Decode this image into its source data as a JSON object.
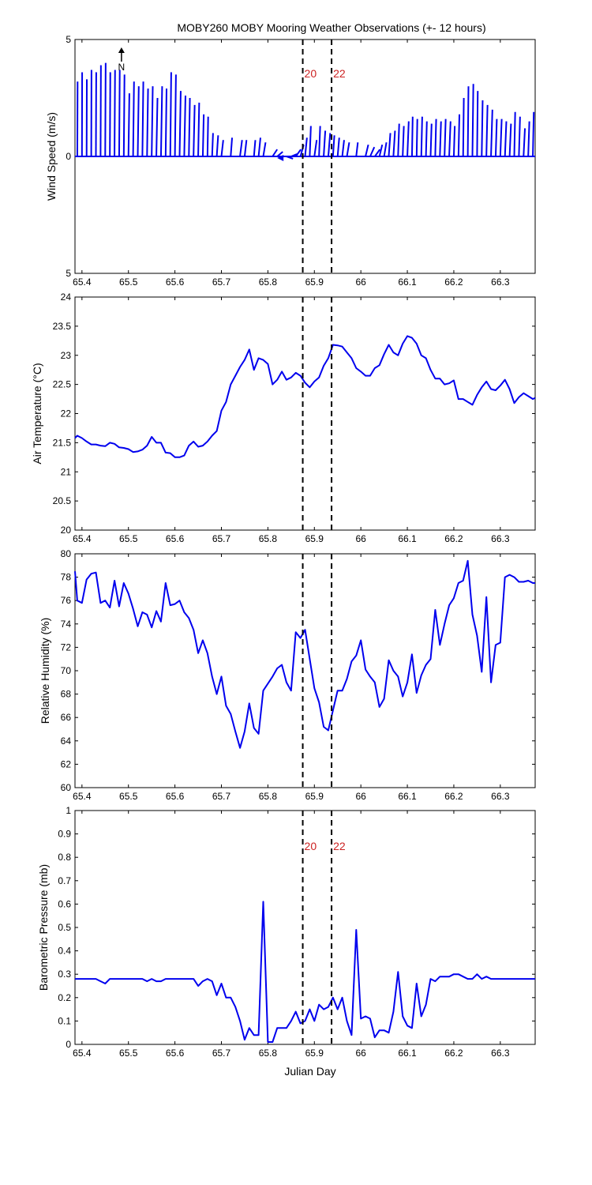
{
  "figure": {
    "title": "MOBY260 MOBY Mooring Weather Observations (+- 12 hours)",
    "xlabel": "Julian Day",
    "line_color": "#0000ee",
    "marker_color": "#cc2222",
    "x_ticks": [
      "65.4",
      "65.5",
      "65.6",
      "65.7",
      "65.8",
      "65.9",
      "66",
      "66.1",
      "66.2",
      "66.3"
    ]
  },
  "chart_data": [
    {
      "type": "line",
      "subtype": "wind-stick",
      "ylabel": "Wind Speed (m/s)",
      "xlim": [
        65.385,
        66.375
      ],
      "ylim": [
        -5,
        5
      ],
      "y_ticks": [
        "5",
        "0",
        "5"
      ],
      "north_label": "N",
      "vline_labels": [
        "20",
        "22"
      ],
      "vlines": [
        65.875,
        65.937
      ],
      "sticks": [
        [
          65.39,
          3.2,
          0.06
        ],
        [
          65.4,
          3.6,
          0.04
        ],
        [
          65.41,
          3.3,
          0.05
        ],
        [
          65.42,
          3.7,
          0.05
        ],
        [
          65.43,
          3.6,
          0.07
        ],
        [
          65.44,
          3.9,
          0.08
        ],
        [
          65.45,
          4.0,
          0.1
        ],
        [
          65.46,
          3.6,
          0.1
        ],
        [
          65.47,
          3.7,
          0.12
        ],
        [
          65.48,
          3.7,
          0.13
        ],
        [
          65.49,
          3.5,
          0.15
        ],
        [
          65.5,
          2.7,
          0.2
        ],
        [
          65.51,
          3.2,
          0.2
        ],
        [
          65.52,
          3.0,
          0.22
        ],
        [
          65.53,
          3.2,
          0.2
        ],
        [
          65.54,
          2.9,
          0.22
        ],
        [
          65.55,
          3.0,
          0.23
        ],
        [
          65.56,
          2.5,
          0.25
        ],
        [
          65.57,
          3.0,
          0.25
        ],
        [
          65.58,
          2.9,
          0.2
        ],
        [
          65.59,
          3.6,
          0.2
        ],
        [
          65.6,
          3.5,
          0.22
        ],
        [
          65.61,
          2.8,
          0.25
        ],
        [
          65.62,
          2.6,
          0.27
        ],
        [
          65.63,
          2.5,
          0.22
        ],
        [
          65.64,
          2.2,
          0.25
        ],
        [
          65.65,
          2.3,
          0.22
        ],
        [
          65.66,
          1.8,
          0.2
        ],
        [
          65.67,
          1.7,
          0.15
        ],
        [
          65.68,
          1.0,
          0.2
        ],
        [
          65.69,
          0.9,
          0.3
        ],
        [
          65.7,
          0.7,
          0.4
        ],
        [
          65.72,
          0.8,
          0.3
        ],
        [
          65.74,
          0.7,
          0.45
        ],
        [
          65.75,
          0.7,
          0.4
        ],
        [
          65.77,
          0.7,
          0.3
        ],
        [
          65.78,
          0.8,
          0.4
        ],
        [
          65.79,
          0.6,
          0.5
        ],
        [
          65.81,
          0.3,
          1.0
        ],
        [
          65.82,
          0.2,
          1.2
        ],
        [
          65.84,
          -0.1,
          1.4
        ],
        [
          65.85,
          0.1,
          1.25
        ],
        [
          65.86,
          0.3,
          1.1
        ],
        [
          65.87,
          0.5,
          0.7
        ],
        [
          65.88,
          0.8,
          0.4
        ],
        [
          65.89,
          1.3,
          0.25
        ],
        [
          65.9,
          0.7,
          0.5
        ],
        [
          65.91,
          1.3,
          0.25
        ],
        [
          65.92,
          1.1,
          0.35
        ],
        [
          65.93,
          1.0,
          0.4
        ],
        [
          65.94,
          0.9,
          0.3
        ],
        [
          65.95,
          0.8,
          0.35
        ],
        [
          65.96,
          0.7,
          0.4
        ],
        [
          65.97,
          0.6,
          0.5
        ],
        [
          65.99,
          0.6,
          0.35
        ],
        [
          66.01,
          0.5,
          0.6
        ],
        [
          66.02,
          0.4,
          0.9
        ],
        [
          66.03,
          0.3,
          1.1
        ],
        [
          66.04,
          0.5,
          0.6
        ],
        [
          66.05,
          0.6,
          0.5
        ],
        [
          66.06,
          1.0,
          0.35
        ],
        [
          66.07,
          1.1,
          0.35
        ],
        [
          66.08,
          1.4,
          0.25
        ],
        [
          66.09,
          1.3,
          0.25
        ],
        [
          66.1,
          1.5,
          0.3
        ],
        [
          66.11,
          1.7,
          0.15
        ],
        [
          66.12,
          1.6,
          0.15
        ],
        [
          66.13,
          1.7,
          0.2
        ],
        [
          66.14,
          1.5,
          0.2
        ],
        [
          66.15,
          1.4,
          0.22
        ],
        [
          66.16,
          1.6,
          0.2
        ],
        [
          66.17,
          1.5,
          0.25
        ],
        [
          66.18,
          1.6,
          0.25
        ],
        [
          66.19,
          1.5,
          0.3
        ],
        [
          66.2,
          1.3,
          0.2
        ],
        [
          66.21,
          1.8,
          0.2
        ],
        [
          66.22,
          2.5,
          0.15
        ],
        [
          66.23,
          3.0,
          0.15
        ],
        [
          66.24,
          3.1,
          0.2
        ],
        [
          66.25,
          2.8,
          0.15
        ],
        [
          66.26,
          2.4,
          0.2
        ],
        [
          66.27,
          2.2,
          0.25
        ],
        [
          66.28,
          2.0,
          0.3
        ],
        [
          66.29,
          1.6,
          0.25
        ],
        [
          66.3,
          1.6,
          0.3
        ],
        [
          66.31,
          1.5,
          0.3
        ],
        [
          66.32,
          1.4,
          0.3
        ],
        [
          66.33,
          1.9,
          0.2
        ],
        [
          66.34,
          1.7,
          0.25
        ],
        [
          66.35,
          1.2,
          0.3
        ],
        [
          66.36,
          1.5,
          0.25
        ],
        [
          66.37,
          1.9,
          0.2
        ]
      ]
    },
    {
      "type": "line",
      "ylabel": "Air Temperature (°C)",
      "xlim": [
        65.385,
        66.375
      ],
      "ylim": [
        20,
        24
      ],
      "y_ticks": [
        "20",
        "20.5",
        "21",
        "21.5",
        "22",
        "22.5",
        "23",
        "23.5",
        "24"
      ],
      "vlines": [
        65.875,
        65.937
      ],
      "x": [
        65.385,
        65.39,
        65.4,
        65.41,
        65.42,
        65.43,
        65.44,
        65.45,
        65.46,
        65.47,
        65.48,
        65.49,
        65.5,
        65.51,
        65.52,
        65.53,
        65.54,
        65.55,
        65.56,
        65.57,
        65.58,
        65.59,
        65.6,
        65.61,
        65.62,
        65.63,
        65.64,
        65.65,
        65.66,
        65.67,
        65.68,
        65.69,
        65.7,
        65.71,
        65.72,
        65.73,
        65.74,
        65.75,
        65.76,
        65.77,
        65.78,
        65.79,
        65.8,
        65.81,
        65.82,
        65.83,
        65.84,
        65.85,
        65.86,
        65.87,
        65.88,
        65.89,
        65.9,
        65.91,
        65.92,
        65.93,
        65.94,
        65.95,
        65.96,
        65.97,
        65.98,
        65.99,
        66.0,
        66.01,
        66.02,
        66.03,
        66.04,
        66.05,
        66.06,
        66.07,
        66.08,
        66.09,
        66.1,
        66.11,
        66.12,
        66.13,
        66.14,
        66.15,
        66.16,
        66.17,
        66.18,
        66.19,
        66.2,
        66.21,
        66.22,
        66.23,
        66.24,
        66.25,
        66.26,
        66.27,
        66.28,
        66.29,
        66.3,
        66.31,
        66.32,
        66.33,
        66.34,
        66.35,
        66.36,
        66.37,
        66.375
      ],
      "y": [
        21.58,
        21.62,
        21.58,
        21.52,
        21.47,
        21.47,
        21.45,
        21.44,
        21.5,
        21.48,
        21.42,
        21.41,
        21.39,
        21.34,
        21.35,
        21.38,
        21.45,
        21.6,
        21.5,
        21.5,
        21.33,
        21.32,
        21.25,
        21.25,
        21.28,
        21.45,
        21.52,
        21.43,
        21.45,
        21.52,
        21.62,
        21.7,
        22.05,
        22.2,
        22.5,
        22.65,
        22.8,
        22.92,
        23.1,
        22.75,
        22.95,
        22.92,
        22.85,
        22.5,
        22.58,
        22.72,
        22.58,
        22.62,
        22.7,
        22.65,
        22.53,
        22.45,
        22.55,
        22.62,
        22.82,
        22.95,
        23.18,
        23.17,
        23.15,
        23.05,
        22.95,
        22.78,
        22.72,
        22.65,
        22.65,
        22.78,
        22.83,
        23.02,
        23.18,
        23.05,
        23.0,
        23.2,
        23.33,
        23.3,
        23.2,
        23.0,
        22.95,
        22.75,
        22.6,
        22.6,
        22.5,
        22.52,
        22.57,
        22.25,
        22.25,
        22.2,
        22.15,
        22.32,
        22.45,
        22.55,
        22.42,
        22.4,
        22.48,
        22.58,
        22.42,
        22.18,
        22.28,
        22.35,
        22.3,
        22.25,
        22.27
      ]
    },
    {
      "type": "line",
      "ylabel": "Relative Humidity (%)",
      "xlim": [
        65.385,
        66.375
      ],
      "ylim": [
        60,
        80
      ],
      "y_ticks": [
        "60",
        "62",
        "64",
        "66",
        "68",
        "70",
        "72",
        "74",
        "76",
        "78",
        "80"
      ],
      "vlines": [
        65.875,
        65.937
      ],
      "x": [
        65.385,
        65.39,
        65.4,
        65.41,
        65.42,
        65.43,
        65.44,
        65.45,
        65.46,
        65.47,
        65.48,
        65.49,
        65.5,
        65.51,
        65.52,
        65.53,
        65.54,
        65.55,
        65.56,
        65.57,
        65.58,
        65.59,
        65.6,
        65.61,
        65.62,
        65.63,
        65.64,
        65.65,
        65.66,
        65.67,
        65.68,
        65.69,
        65.7,
        65.71,
        65.72,
        65.73,
        65.74,
        65.75,
        65.76,
        65.77,
        65.78,
        65.79,
        65.8,
        65.81,
        65.82,
        65.83,
        65.84,
        65.85,
        65.86,
        65.87,
        65.88,
        65.89,
        65.9,
        65.91,
        65.92,
        65.93,
        65.94,
        65.95,
        65.96,
        65.97,
        65.98,
        65.99,
        66.0,
        66.01,
        66.02,
        66.03,
        66.04,
        66.05,
        66.06,
        66.07,
        66.08,
        66.09,
        66.1,
        66.11,
        66.12,
        66.13,
        66.14,
        66.15,
        66.16,
        66.17,
        66.18,
        66.19,
        66.2,
        66.21,
        66.22,
        66.23,
        66.24,
        66.25,
        66.26,
        66.27,
        66.28,
        66.29,
        66.3,
        66.31,
        66.32,
        66.33,
        66.34,
        66.35,
        66.36,
        66.37,
        66.375
      ],
      "y": [
        78.5,
        76.0,
        75.8,
        77.8,
        78.3,
        78.4,
        75.8,
        76.0,
        75.4,
        77.7,
        75.5,
        77.5,
        76.6,
        75.3,
        73.8,
        75.0,
        74.8,
        73.7,
        75.1,
        74.2,
        77.5,
        75.6,
        75.7,
        76.0,
        75.0,
        74.5,
        73.5,
        71.5,
        72.6,
        71.5,
        69.5,
        68.0,
        69.5,
        67.0,
        66.3,
        64.8,
        63.4,
        64.8,
        67.2,
        65.1,
        64.6,
        68.3,
        68.9,
        69.5,
        70.2,
        70.5,
        69.0,
        68.3,
        73.3,
        72.8,
        73.5,
        71.0,
        68.5,
        67.3,
        65.2,
        64.9,
        66.6,
        68.3,
        68.3,
        69.3,
        70.8,
        71.3,
        72.6,
        70.1,
        69.5,
        69.0,
        66.9,
        67.6,
        70.9,
        70.0,
        69.5,
        67.8,
        69.0,
        71.4,
        68.1,
        69.6,
        70.5,
        71.0,
        75.2,
        72.2,
        74.0,
        75.6,
        76.2,
        77.5,
        77.7,
        79.4,
        74.8,
        73.0,
        69.9,
        76.3,
        69.0,
        72.2,
        72.4,
        78.0,
        78.2,
        78.0,
        77.6,
        77.6,
        77.7,
        77.5,
        77.5
      ]
    },
    {
      "type": "line",
      "ylabel": "Barometric Pressure (mb)",
      "xlim": [
        65.385,
        66.375
      ],
      "ylim": [
        0,
        1
      ],
      "y_ticks": [
        "0",
        "0.1",
        "0.2",
        "0.3",
        "0.4",
        "0.5",
        "0.6",
        "0.7",
        "0.8",
        "0.9",
        "1"
      ],
      "vline_labels": [
        "20",
        "22"
      ],
      "vlines": [
        65.875,
        65.937
      ],
      "x": [
        65.385,
        65.39,
        65.4,
        65.41,
        65.42,
        65.43,
        65.44,
        65.45,
        65.46,
        65.47,
        65.48,
        65.49,
        65.5,
        65.51,
        65.52,
        65.53,
        65.54,
        65.55,
        65.56,
        65.57,
        65.58,
        65.59,
        65.6,
        65.61,
        65.62,
        65.63,
        65.64,
        65.65,
        65.66,
        65.67,
        65.68,
        65.69,
        65.7,
        65.71,
        65.72,
        65.73,
        65.74,
        65.75,
        65.76,
        65.77,
        65.78,
        65.79,
        65.8,
        65.81,
        65.82,
        65.83,
        65.84,
        65.85,
        65.86,
        65.87,
        65.88,
        65.89,
        65.9,
        65.91,
        65.92,
        65.93,
        65.94,
        65.95,
        65.96,
        65.97,
        65.98,
        65.99,
        66.0,
        66.01,
        66.02,
        66.03,
        66.04,
        66.05,
        66.06,
        66.07,
        66.08,
        66.09,
        66.1,
        66.11,
        66.12,
        66.13,
        66.14,
        66.15,
        66.16,
        66.17,
        66.18,
        66.19,
        66.2,
        66.21,
        66.22,
        66.23,
        66.24,
        66.25,
        66.26,
        66.27,
        66.28,
        66.29,
        66.3,
        66.31,
        66.32,
        66.33,
        66.34,
        66.35,
        66.36,
        66.37,
        66.375
      ],
      "y": [
        0.28,
        0.28,
        0.28,
        0.28,
        0.28,
        0.28,
        0.27,
        0.26,
        0.28,
        0.28,
        0.28,
        0.28,
        0.28,
        0.28,
        0.28,
        0.28,
        0.27,
        0.28,
        0.27,
        0.27,
        0.28,
        0.28,
        0.28,
        0.28,
        0.28,
        0.28,
        0.28,
        0.25,
        0.27,
        0.28,
        0.27,
        0.21,
        0.26,
        0.2,
        0.2,
        0.16,
        0.1,
        0.02,
        0.07,
        0.04,
        0.04,
        0.61,
        0.01,
        0.01,
        0.07,
        0.07,
        0.07,
        0.1,
        0.14,
        0.09,
        0.1,
        0.15,
        0.1,
        0.17,
        0.15,
        0.16,
        0.2,
        0.15,
        0.2,
        0.1,
        0.04,
        0.49,
        0.11,
        0.12,
        0.11,
        0.03,
        0.06,
        0.06,
        0.05,
        0.14,
        0.31,
        0.12,
        0.08,
        0.07,
        0.26,
        0.12,
        0.17,
        0.28,
        0.27,
        0.29,
        0.29,
        0.29,
        0.3,
        0.3,
        0.29,
        0.28,
        0.28,
        0.3,
        0.28,
        0.29,
        0.28,
        0.28,
        0.28,
        0.28,
        0.28,
        0.28,
        0.28,
        0.28,
        0.28,
        0.28,
        0.28
      ]
    }
  ]
}
